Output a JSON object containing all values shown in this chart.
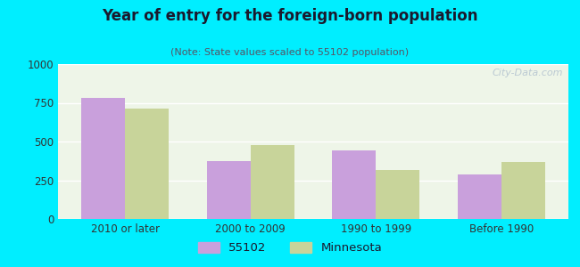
{
  "title": "Year of entry for the foreign-born population",
  "subtitle": "(Note: State values scaled to 55102 population)",
  "categories": [
    "2010 or later",
    "2000 to 2009",
    "1990 to 1999",
    "Before 1990"
  ],
  "values_55102": [
    780,
    375,
    440,
    285
  ],
  "values_minnesota": [
    715,
    475,
    315,
    365
  ],
  "color_55102": "#c9a0dc",
  "color_minnesota": "#c8d49a",
  "ylim": [
    0,
    1000
  ],
  "yticks": [
    0,
    250,
    500,
    750,
    1000
  ],
  "background_outer": "#00eeff",
  "background_inner": "#eef5e8",
  "bar_width": 0.35,
  "legend_label_55102": "55102",
  "legend_label_minnesota": "Minnesota",
  "title_color": "#1a1a2e",
  "subtitle_color": "#555566",
  "watermark": "City-Data.com"
}
